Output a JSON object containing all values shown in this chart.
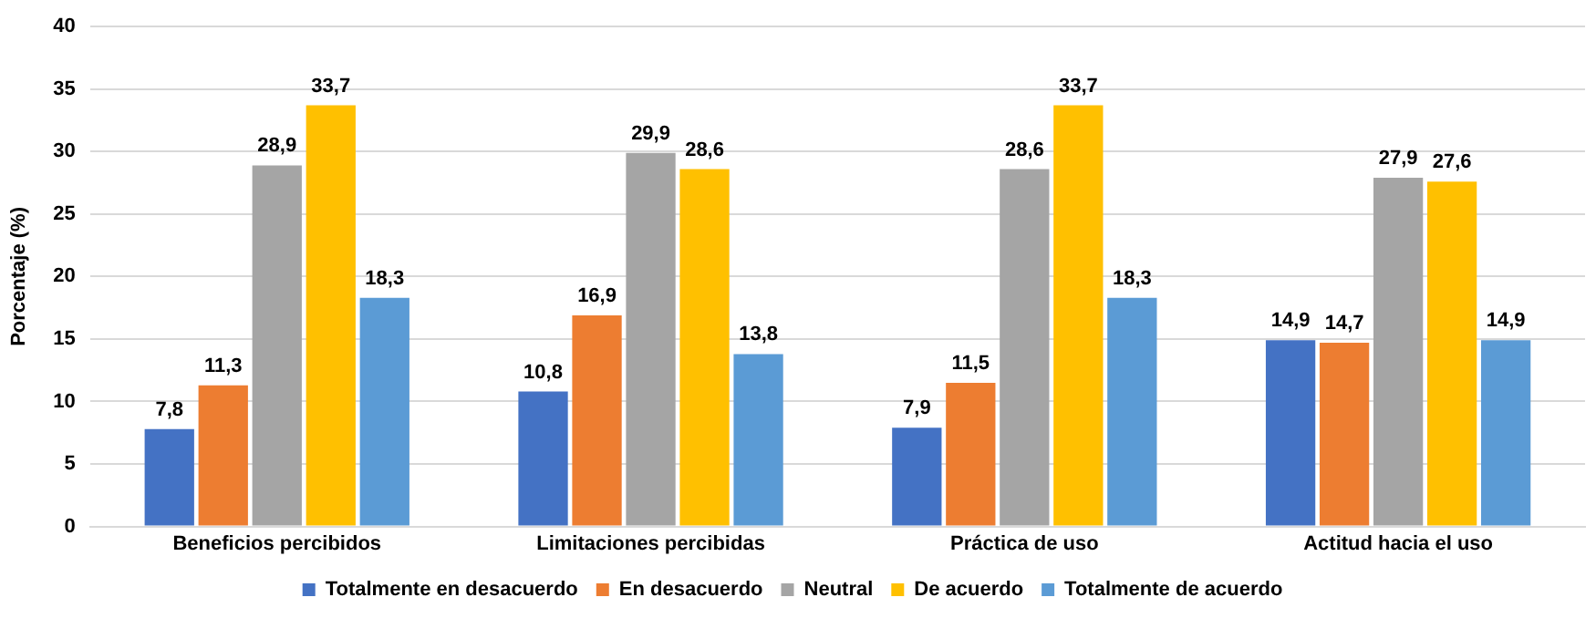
{
  "chart_data": {
    "type": "bar",
    "ylabel": "Porcentaje (%)",
    "categories": [
      "Beneficios percibidos",
      "Limitaciones percibidas",
      "Práctica de uso",
      "Actitud hacia el uso"
    ],
    "series": [
      {
        "name": "Totalmente en desacuerdo",
        "color": "#4472c4",
        "values": [
          7.8,
          10.8,
          7.9,
          14.9
        ],
        "value_labels": [
          "7,8",
          "10,8",
          "7,9",
          "14,9"
        ]
      },
      {
        "name": "En desacuerdo",
        "color": "#ed7d31",
        "values": [
          11.3,
          16.9,
          11.5,
          14.7
        ],
        "value_labels": [
          "11,3",
          "16,9",
          "11,5",
          "14,7"
        ]
      },
      {
        "name": "Neutral",
        "color": "#a5a5a5",
        "values": [
          28.9,
          29.9,
          28.6,
          27.9
        ],
        "value_labels": [
          "28,9",
          "29,9",
          "28,6",
          "27,9"
        ]
      },
      {
        "name": "De acuerdo",
        "color": "#ffc000",
        "values": [
          33.7,
          28.6,
          33.7,
          27.6
        ],
        "value_labels": [
          "33,7",
          "28,6",
          "33,7",
          "27,6"
        ]
      },
      {
        "name": "Totalmente de acuerdo",
        "color": "#5b9bd5",
        "values": [
          18.3,
          13.8,
          18.3,
          14.9
        ],
        "value_labels": [
          "18,3",
          "13,8",
          "18,3",
          "14,9"
        ]
      }
    ],
    "ylim": [
      0,
      40
    ],
    "yticks": [
      0,
      5,
      10,
      15,
      20,
      25,
      30,
      35,
      40
    ],
    "grid": "y",
    "legend": "bottom"
  }
}
